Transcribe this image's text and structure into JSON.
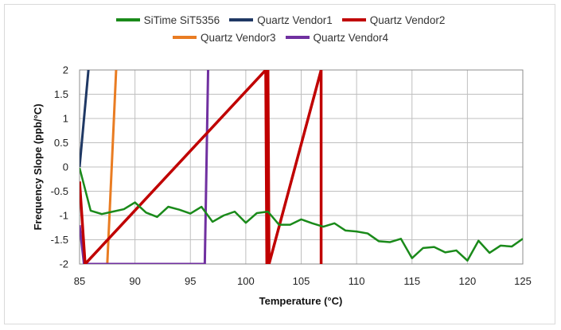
{
  "chart_data": {
    "type": "line",
    "title": "",
    "xlabel": "Temperature (°C)",
    "ylabel": "Frequency Slope (ppb/°C)",
    "xlim": [
      85,
      125
    ],
    "ylim": [
      -2,
      2
    ],
    "xticks": [
      85,
      90,
      95,
      100,
      105,
      110,
      115,
      120,
      125
    ],
    "yticks": [
      2,
      1.5,
      1,
      0.5,
      0,
      -0.5,
      -1,
      -1.5,
      -2
    ],
    "x_tick_labels": [
      "85",
      "90",
      "95",
      "100",
      "105",
      "110",
      "115",
      "120",
      "125"
    ],
    "y_tick_labels": [
      "2",
      "1.5",
      "1",
      "0.5",
      "0",
      "-0.5",
      "-1",
      "-1.5",
      "-2"
    ],
    "grid": true,
    "legend_position": "top",
    "series": [
      {
        "name": "SiTime SiT5356",
        "color": "#1a8a1a",
        "x": [
          85,
          86,
          87,
          88,
          89,
          90,
          91,
          92,
          93,
          94,
          95,
          96,
          97,
          98,
          99,
          100,
          101,
          102,
          103,
          104,
          105,
          106,
          107,
          108,
          109,
          110,
          111,
          112,
          113,
          114,
          115,
          116,
          117,
          118,
          119,
          120,
          121,
          122,
          123,
          124,
          125
        ],
        "y": [
          -0.02,
          -0.9,
          -0.97,
          -0.92,
          -0.87,
          -0.73,
          -0.94,
          -1.03,
          -0.82,
          -0.88,
          -0.96,
          -0.82,
          -1.13,
          -1.0,
          -0.92,
          -1.15,
          -0.95,
          -0.92,
          -1.19,
          -1.19,
          -1.08,
          -1.16,
          -1.23,
          -1.16,
          -1.31,
          -1.33,
          -1.37,
          -1.53,
          -1.55,
          -1.48,
          -1.88,
          -1.67,
          -1.65,
          -1.76,
          -1.72,
          -1.93,
          -1.52,
          -1.77,
          -1.62,
          -1.64,
          -1.48
        ]
      },
      {
        "name": "Quartz Vendor1",
        "color": "#1f3864",
        "x": [
          85.0,
          85.8
        ],
        "y": [
          0.0,
          2.0
        ]
      },
      {
        "name": "Quartz Vendor2",
        "color": "#c00000",
        "x": [
          85.0,
          85.5,
          101.8,
          101.9,
          102.0,
          102.1,
          106.8,
          106.8
        ],
        "y": [
          -0.3,
          -2.0,
          2.0,
          -2.0,
          2.0,
          -2.0,
          2.0,
          -2.0
        ]
      },
      {
        "name": "Quartz Vendor3",
        "color": "#e97c22",
        "x": [
          87.5,
          88.3
        ],
        "y": [
          -2.0,
          2.0
        ]
      },
      {
        "name": "Quartz Vendor4",
        "color": "#7030a0",
        "x": [
          85.0,
          85.4,
          96.3,
          96.6
        ],
        "y": [
          -1.2,
          -2.0,
          -2.0,
          2.0
        ]
      }
    ]
  }
}
